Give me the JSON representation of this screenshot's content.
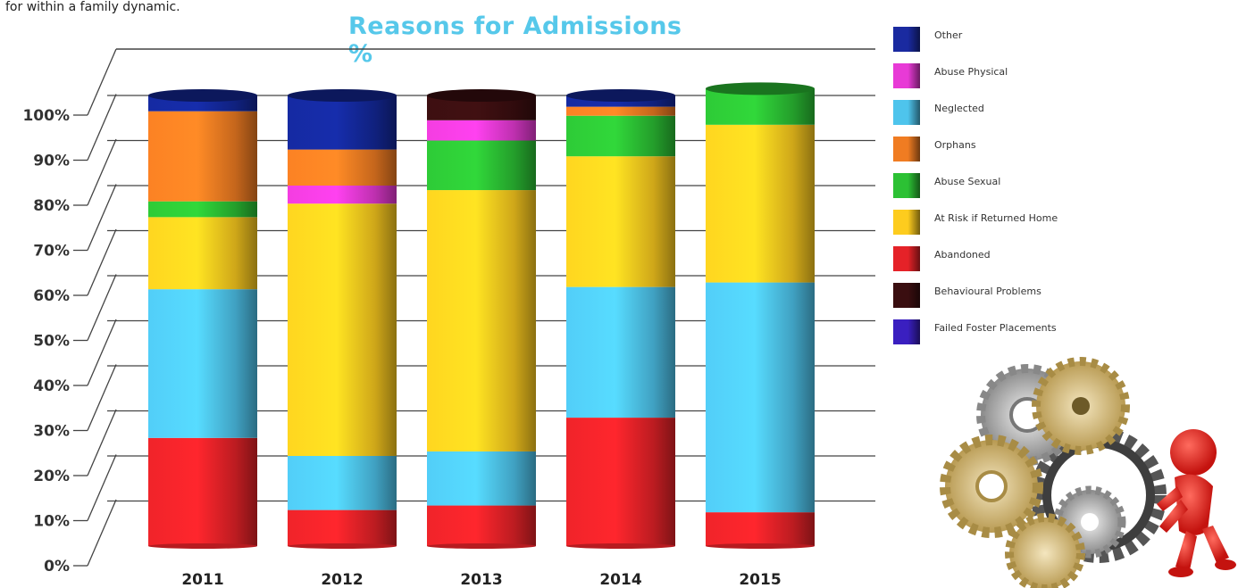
{
  "intro_text": "for within a family dynamic.",
  "chart_data": {
    "type": "bar",
    "stacked": true,
    "title": "Reasons for Admissions %",
    "xlabel": "",
    "ylabel": "",
    "ylim": [
      0,
      100
    ],
    "yticks": [
      "0%",
      "10%",
      "20%",
      "30%",
      "40%",
      "50%",
      "60%",
      "70%",
      "80%",
      "90%",
      "100%"
    ],
    "categories": [
      "2011",
      "2012",
      "2013",
      "2014",
      "2015"
    ],
    "series": [
      {
        "name": "Abandoned",
        "color": "#e52228",
        "values": [
          24,
          8,
          9,
          28.5,
          7.5
        ]
      },
      {
        "name": "Neglected",
        "color": "#4ec4ec",
        "values": [
          33,
          12,
          12,
          29,
          51
        ]
      },
      {
        "name": "At Risk if Returned Home",
        "color": "#fdcc1e",
        "values": [
          16,
          56,
          58,
          29,
          35
        ]
      },
      {
        "name": "Abuse Sexual",
        "color": "#2cc134",
        "values": [
          3.5,
          0,
          11,
          9,
          8
        ]
      },
      {
        "name": "Abuse Physical",
        "color": "#e83ad6",
        "values": [
          0,
          4,
          4.5,
          0,
          0
        ]
      },
      {
        "name": "Orphans",
        "color": "#f07c22",
        "values": [
          20,
          8,
          0,
          2,
          0
        ]
      },
      {
        "name": "Behavioural Problems",
        "color": "#3a0e10",
        "values": [
          0,
          0,
          5.5,
          0,
          0
        ]
      },
      {
        "name": "Other",
        "color": "#14289a",
        "values": [
          3.5,
          12,
          0,
          2.5,
          0
        ]
      }
    ],
    "legend_position": "right",
    "grid": true
  },
  "legend": [
    {
      "label": "Other",
      "color": "#1a2aa0"
    },
    {
      "label": "Abuse Physical",
      "color": "#e83ad6"
    },
    {
      "label": "Neglected",
      "color": "#4ec4ec"
    },
    {
      "label": "Orphans",
      "color": "#f07c22"
    },
    {
      "label": "Abuse Sexual",
      "color": "#2cc134"
    },
    {
      "label": "At Risk if Returned Home",
      "color": "#fdcc1e"
    },
    {
      "label": "Abandoned",
      "color": "#e52228"
    },
    {
      "label": "Behavioural Problems",
      "color": "#3a0e10"
    },
    {
      "label": "Failed Foster Placements",
      "color": "#3a1fc0"
    }
  ],
  "illustration": "red-figure-pushing-gears-icon"
}
